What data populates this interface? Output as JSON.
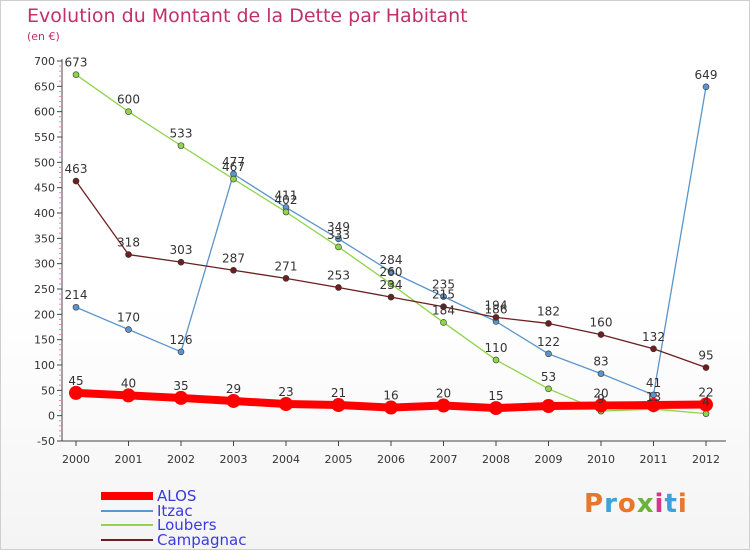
{
  "header": {
    "title": "Evolution du Montant de la Dette par Habitant",
    "subtitle": "(en €)"
  },
  "logo": {
    "text": "Proxiti",
    "colors": [
      "#e8762b",
      "#3fa1d8",
      "#e8762b",
      "#6ab23a",
      "#d8348a",
      "#3fa1d8",
      "#e8762b"
    ]
  },
  "chart_data": {
    "type": "line",
    "title": "Evolution du Montant de la Dette par Habitant",
    "subtitle": "(en €)",
    "xlabel": "",
    "ylabel": "",
    "x": [
      "2000",
      "2001",
      "2002",
      "2003",
      "2004",
      "2005",
      "2006",
      "2007",
      "2008",
      "2009",
      "2010",
      "2011",
      "2012"
    ],
    "ylim": [
      -50,
      700
    ],
    "yticks": [
      -50,
      0,
      50,
      100,
      150,
      200,
      250,
      300,
      350,
      400,
      450,
      500,
      550,
      600,
      650,
      700
    ],
    "grid": false,
    "legend_position": "bottom-left",
    "series": [
      {
        "name": "ALOS",
        "color": "#ff0000",
        "width": 8,
        "marker": 7,
        "values": [
          45,
          40,
          35,
          29,
          23,
          21,
          16,
          20,
          15,
          19,
          20,
          21,
          22
        ],
        "labels": [
          "45",
          "40",
          "35",
          "29",
          "23",
          "21",
          "16",
          "20",
          "15",
          "",
          "20",
          "",
          "22"
        ]
      },
      {
        "name": "Itzac",
        "color": "#5b95cc",
        "width": 1.3,
        "marker": 3,
        "values": [
          214,
          170,
          126,
          477,
          411,
          349,
          284,
          235,
          186,
          122,
          83,
          41,
          649
        ],
        "labels": [
          "214",
          "170",
          "126",
          "477",
          "411",
          "349",
          "284",
          "235",
          "186",
          "122",
          "83",
          "41",
          "649"
        ]
      },
      {
        "name": "Loubers",
        "color": "#8fd44a",
        "width": 1.3,
        "marker": 3,
        "values": [
          673,
          600,
          533,
          467,
          402,
          333,
          260,
          184,
          110,
          53,
          9,
          13,
          4
        ],
        "labels": [
          "673",
          "600",
          "533",
          "467",
          "402",
          "333",
          "260",
          "184",
          "110",
          "53",
          "9",
          "13",
          "4"
        ]
      },
      {
        "name": "Campagnac",
        "color": "#6d1f1f",
        "width": 1.3,
        "marker": 3,
        "values": [
          463,
          318,
          303,
          287,
          271,
          253,
          234,
          215,
          194,
          182,
          160,
          132,
          95
        ],
        "labels": [
          "463",
          "318",
          "303",
          "287",
          "271",
          "253",
          "234",
          "215",
          "194",
          "182",
          "160",
          "132",
          "95"
        ]
      }
    ]
  }
}
